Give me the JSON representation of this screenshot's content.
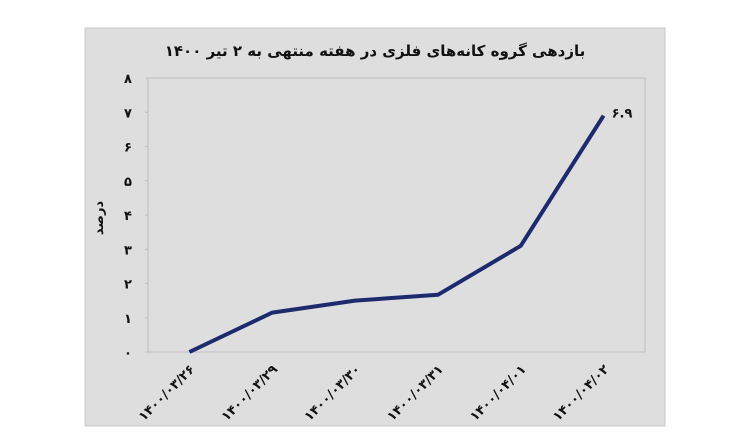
{
  "chart_data": {
    "type": "line",
    "title": "بازدهی گروه کانه‌های فلزی در هفته منتهی به ۲ تیر ۱۴۰۰",
    "y_label": "درصد",
    "categories": [
      "۱۴۰۰/۰۳/۲۶",
      "۱۴۰۰/۰۳/۲۹",
      "۱۴۰۰/۰۳/۳۰",
      "۱۴۰۰/۰۳/۳۱",
      "۱۴۰۰/۰۴/۰۱",
      "۱۴۰۰/۰۴/۰۲"
    ],
    "series": [
      {
        "color": "#1c2a6e",
        "values": [
          0,
          1.15,
          1.5,
          1.67,
          3.1,
          6.9
        ],
        "value_labels": [
          null,
          null,
          null,
          null,
          null,
          "۶.۹"
        ]
      }
    ],
    "ylim": [
      0,
      8
    ],
    "yticks": [
      {
        "value": 0,
        "label": "۰"
      },
      {
        "value": 1,
        "label": "۱"
      },
      {
        "value": 2,
        "label": "۲"
      },
      {
        "value": 3,
        "label": "۳"
      },
      {
        "value": 4,
        "label": "۴"
      },
      {
        "value": 5,
        "label": "۵"
      },
      {
        "value": 6,
        "label": "۶"
      },
      {
        "value": 7,
        "label": "۷"
      },
      {
        "value": 8,
        "label": "۸"
      }
    ]
  }
}
